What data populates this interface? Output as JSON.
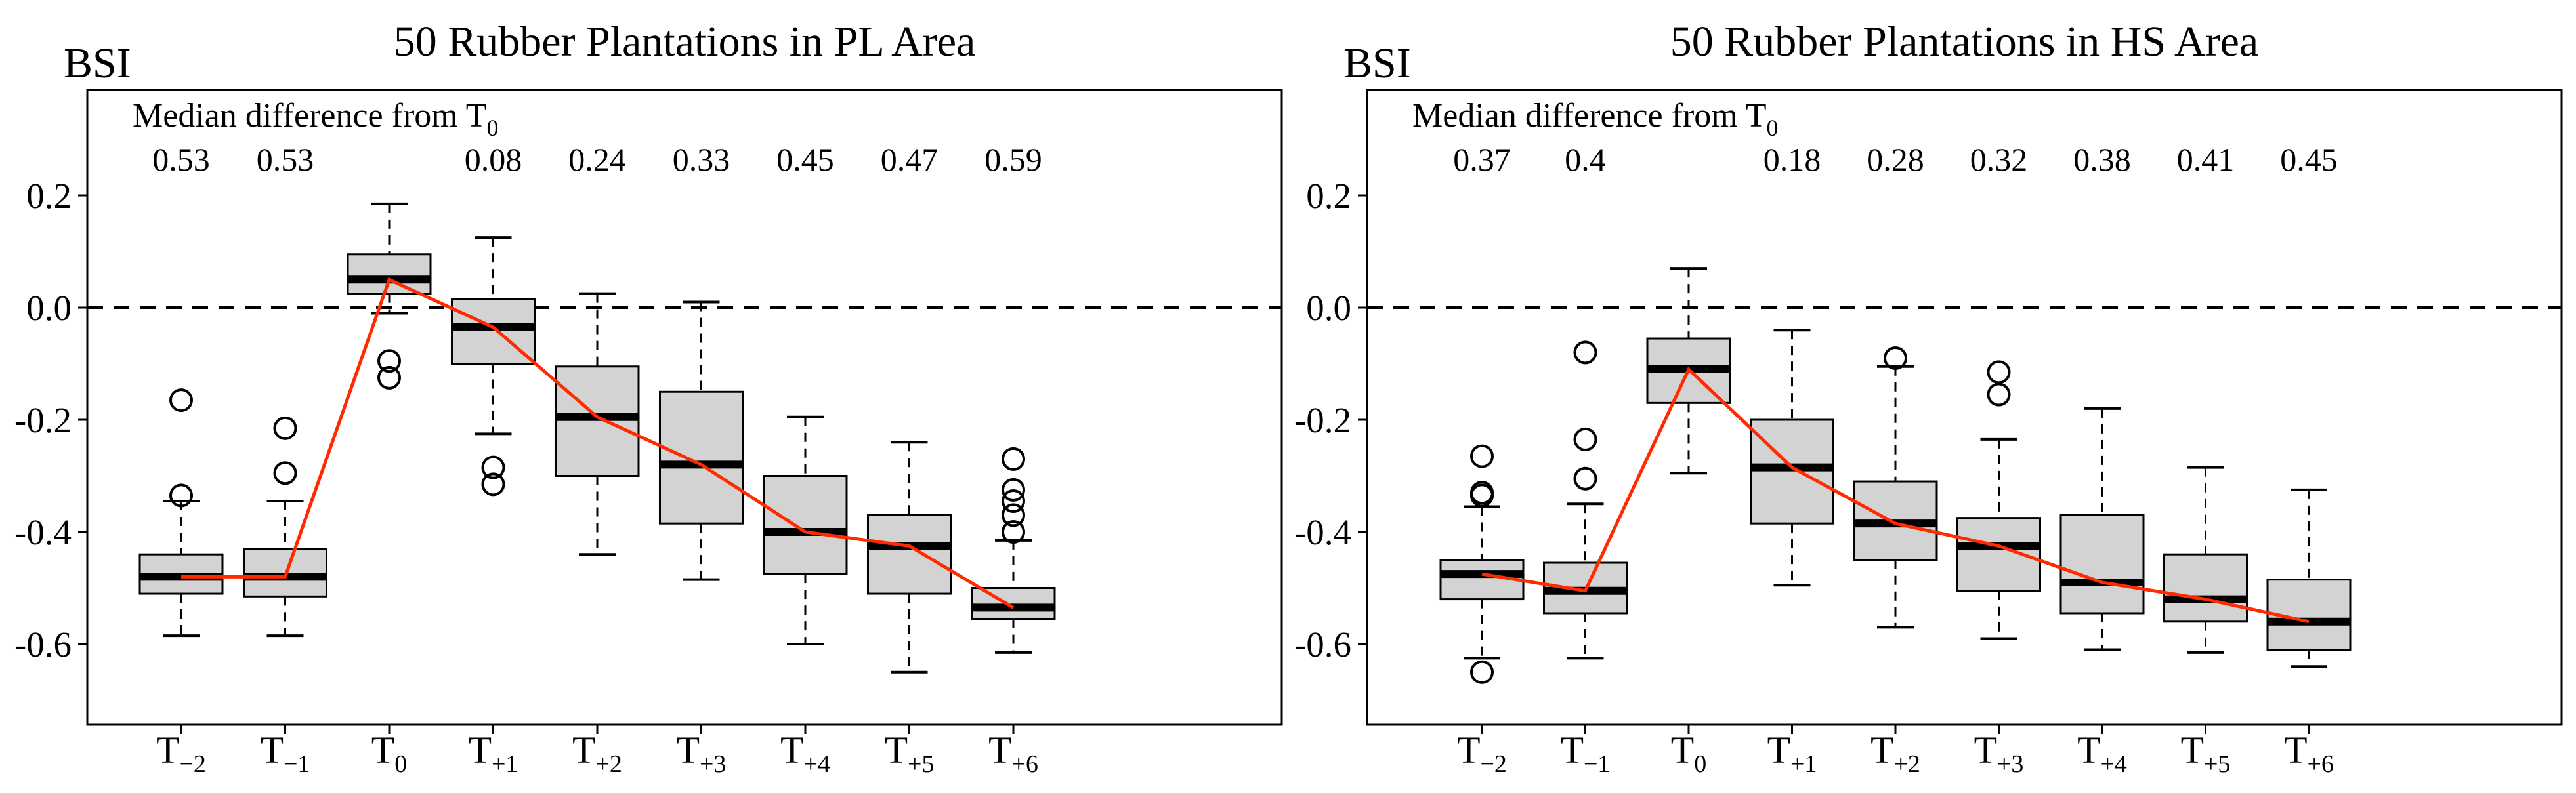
{
  "chart_data": [
    {
      "type": "boxplot",
      "title": "50 Rubber Plantations in PL Area",
      "ylabel": "BSI",
      "annotation": "Median difference from T0",
      "annotation_base": "Median difference from T",
      "annotation_sub": "0",
      "ylim": [
        -0.75,
        0.35
      ],
      "yticks": [
        0.2,
        0.0,
        -0.2,
        -0.4,
        -0.6
      ],
      "ytick_labels": [
        "0.2",
        "0.0",
        "-0.2",
        "-0.4",
        "-0.6"
      ],
      "reference_line": 0.0,
      "categories": [
        {
          "base": "T",
          "sub": "−2"
        },
        {
          "base": "T",
          "sub": "−1"
        },
        {
          "base": "T",
          "sub": "0"
        },
        {
          "base": "T",
          "sub": "+1"
        },
        {
          "base": "T",
          "sub": "+2"
        },
        {
          "base": "T",
          "sub": "+3"
        },
        {
          "base": "T",
          "sub": "+4"
        },
        {
          "base": "T",
          "sub": "+5"
        },
        {
          "base": "T",
          "sub": "+6"
        }
      ],
      "median_differences": [
        "0.53",
        "0.53",
        "",
        "0.08",
        "0.24",
        "0.33",
        "0.45",
        "0.47",
        "0.59"
      ],
      "boxes": [
        {
          "whisker_low": -0.585,
          "q1": -0.51,
          "median": -0.48,
          "q3": -0.44,
          "whisker_high": -0.345,
          "outliers": [
            -0.165,
            -0.335
          ]
        },
        {
          "whisker_low": -0.585,
          "q1": -0.515,
          "median": -0.48,
          "q3": -0.43,
          "whisker_high": -0.345,
          "outliers": [
            -0.215,
            -0.295
          ]
        },
        {
          "whisker_low": -0.01,
          "q1": 0.025,
          "median": 0.05,
          "q3": 0.095,
          "whisker_high": 0.185,
          "outliers": [
            -0.095,
            -0.125
          ]
        },
        {
          "whisker_low": -0.225,
          "q1": -0.1,
          "median": -0.035,
          "q3": 0.015,
          "whisker_high": 0.125,
          "outliers": [
            -0.285,
            -0.315
          ]
        },
        {
          "whisker_low": -0.44,
          "q1": -0.3,
          "median": -0.195,
          "q3": -0.105,
          "whisker_high": 0.025,
          "outliers": []
        },
        {
          "whisker_low": -0.485,
          "q1": -0.385,
          "median": -0.28,
          "q3": -0.15,
          "whisker_high": 0.01,
          "outliers": []
        },
        {
          "whisker_low": -0.6,
          "q1": -0.475,
          "median": -0.4,
          "q3": -0.3,
          "whisker_high": -0.195,
          "outliers": []
        },
        {
          "whisker_low": -0.65,
          "q1": -0.51,
          "median": -0.425,
          "q3": -0.37,
          "whisker_high": -0.24,
          "outliers": []
        },
        {
          "whisker_low": -0.615,
          "q1": -0.555,
          "median": -0.535,
          "q3": -0.5,
          "whisker_high": -0.415,
          "outliers": [
            -0.27,
            -0.325,
            -0.345,
            -0.37,
            -0.4
          ]
        }
      ],
      "trend_line": {
        "color": "#ff2a00",
        "values": [
          -0.48,
          -0.48,
          0.05,
          -0.035,
          -0.195,
          -0.28,
          -0.4,
          -0.425,
          -0.535
        ]
      },
      "box_fill": "#d3d3d3"
    },
    {
      "type": "boxplot",
      "title": "50 Rubber Plantations in HS Area",
      "ylabel": "BSI",
      "annotation": "Median difference from T0",
      "annotation_base": "Median difference from T",
      "annotation_sub": "0",
      "ylim": [
        -0.75,
        0.35
      ],
      "yticks": [
        0.2,
        0.0,
        -0.2,
        -0.4,
        -0.6
      ],
      "ytick_labels": [
        "0.2",
        "0.0",
        "-0.2",
        "-0.4",
        "-0.6"
      ],
      "reference_line": 0.0,
      "categories": [
        {
          "base": "T",
          "sub": "−2"
        },
        {
          "base": "T",
          "sub": "−1"
        },
        {
          "base": "T",
          "sub": "0"
        },
        {
          "base": "T",
          "sub": "+1"
        },
        {
          "base": "T",
          "sub": "+2"
        },
        {
          "base": "T",
          "sub": "+3"
        },
        {
          "base": "T",
          "sub": "+4"
        },
        {
          "base": "T",
          "sub": "+5"
        },
        {
          "base": "T",
          "sub": "+6"
        }
      ],
      "median_differences": [
        "0.37",
        "0.4",
        "",
        "0.18",
        "0.28",
        "0.32",
        "0.38",
        "0.41",
        "0.45"
      ],
      "boxes": [
        {
          "whisker_low": -0.625,
          "q1": -0.52,
          "median": -0.475,
          "q3": -0.45,
          "whisker_high": -0.355,
          "outliers": [
            -0.265,
            -0.33,
            -0.335,
            -0.65
          ]
        },
        {
          "whisker_low": -0.625,
          "q1": -0.545,
          "median": -0.505,
          "q3": -0.455,
          "whisker_high": -0.35,
          "outliers": [
            -0.08,
            -0.235,
            -0.305
          ]
        },
        {
          "whisker_low": -0.295,
          "q1": -0.17,
          "median": -0.11,
          "q3": -0.055,
          "whisker_high": 0.07,
          "outliers": []
        },
        {
          "whisker_low": -0.495,
          "q1": -0.385,
          "median": -0.285,
          "q3": -0.2,
          "whisker_high": -0.04,
          "outliers": []
        },
        {
          "whisker_low": -0.57,
          "q1": -0.45,
          "median": -0.385,
          "q3": -0.31,
          "whisker_high": -0.105,
          "outliers": [
            -0.09
          ]
        },
        {
          "whisker_low": -0.59,
          "q1": -0.505,
          "median": -0.425,
          "q3": -0.375,
          "whisker_high": -0.235,
          "outliers": [
            -0.115,
            -0.155
          ]
        },
        {
          "whisker_low": -0.61,
          "q1": -0.545,
          "median": -0.49,
          "q3": -0.37,
          "whisker_high": -0.18,
          "outliers": []
        },
        {
          "whisker_low": -0.615,
          "q1": -0.56,
          "median": -0.52,
          "q3": -0.44,
          "whisker_high": -0.285,
          "outliers": []
        },
        {
          "whisker_low": -0.64,
          "q1": -0.61,
          "median": -0.56,
          "q3": -0.485,
          "whisker_high": -0.325,
          "outliers": []
        }
      ],
      "trend_line": {
        "color": "#ff2a00",
        "values": [
          -0.475,
          -0.505,
          -0.11,
          -0.285,
          -0.385,
          -0.425,
          -0.49,
          -0.52,
          -0.56
        ]
      },
      "box_fill": "#d3d3d3"
    }
  ]
}
